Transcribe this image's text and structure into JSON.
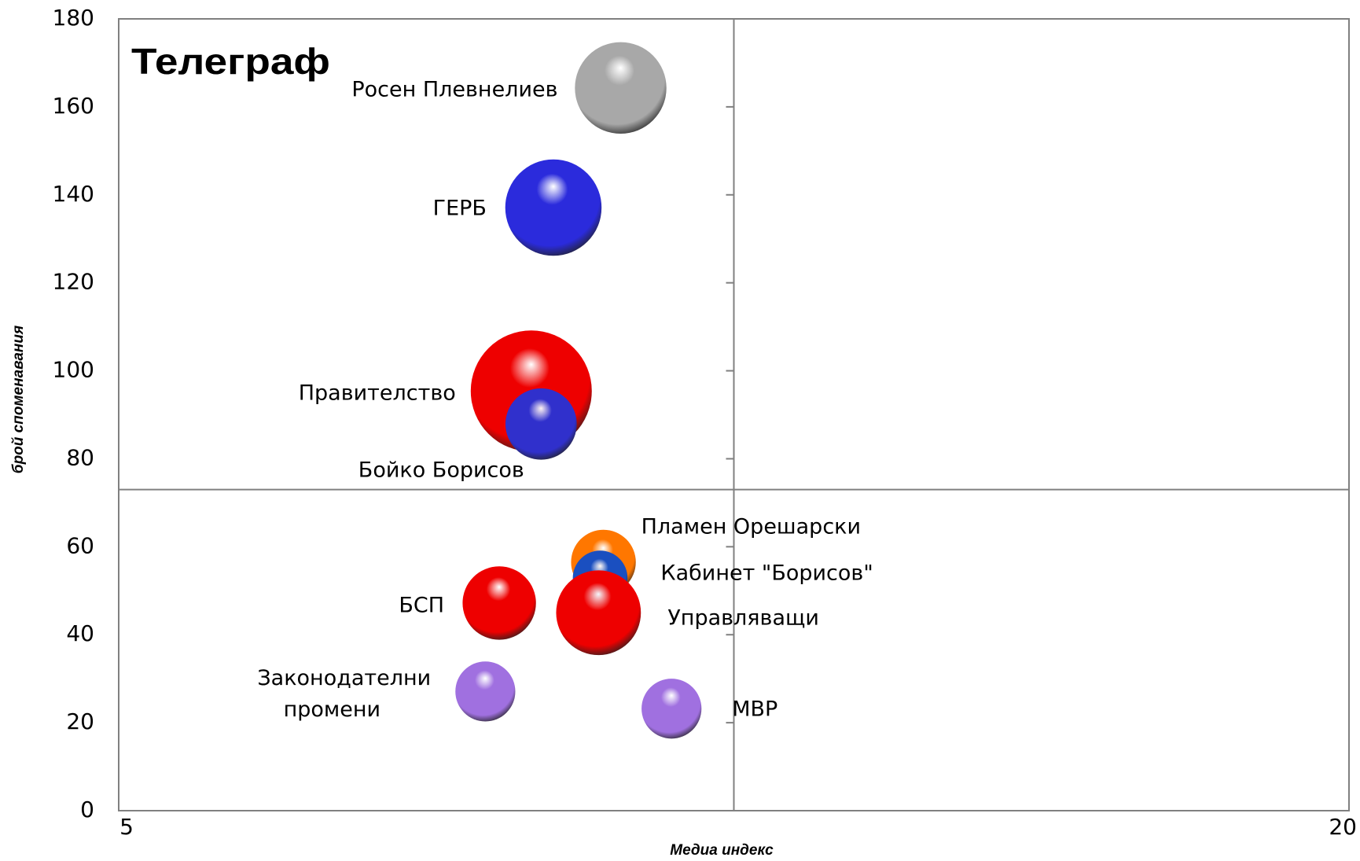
{
  "chart_data": {
    "type": "bubble",
    "logo": "Телеграф",
    "x_label": "Медиа индекс",
    "y_label": "брой споменавания",
    "xlim": [
      5,
      20
    ],
    "xticks": [
      5,
      20
    ],
    "ylim": [
      0,
      180
    ],
    "yticks": [
      0,
      20,
      40,
      60,
      80,
      100,
      120,
      140,
      160,
      180
    ],
    "y_axis_at": 12.5,
    "x_axis_at": 73,
    "points": [
      {
        "name": "Росен Плевнелиев",
        "x": 11.12,
        "y": 164.3,
        "size": 28,
        "color": "#a8a8a8"
      },
      {
        "name": "ГЕРБ",
        "x": 10.3,
        "y": 137.1,
        "size": 31,
        "color": "#2b2bdc"
      },
      {
        "name": "Правителство",
        "x": 10.03,
        "y": 95.4,
        "size": 49,
        "color": "#ee0000"
      },
      {
        "name": "Бойко Борисов",
        "x": 10.15,
        "y": 87.9,
        "size": 17,
        "color": "#3030cc"
      },
      {
        "name": "Пламен Орешарски",
        "x": 10.91,
        "y": 56.5,
        "size": 14,
        "color": "#ff7700"
      },
      {
        "name": "Кабинет \"Борисов\"",
        "x": 10.87,
        "y": 52.9,
        "size": 10,
        "color": "#1a4fc0"
      },
      {
        "name": "БСП",
        "x": 9.64,
        "y": 47.2,
        "size": 18,
        "color": "#ee0000"
      },
      {
        "name": "Управляващи",
        "x": 10.85,
        "y": 45,
        "size": 24,
        "color": "#ee0000"
      },
      {
        "name": "Законодателни промени",
        "x": 9.47,
        "y": 27.1,
        "size": 12,
        "color": "#a070e0"
      },
      {
        "name": "МВР",
        "x": 11.74,
        "y": 23.2,
        "size": 12,
        "color": "#a070e0"
      }
    ]
  }
}
